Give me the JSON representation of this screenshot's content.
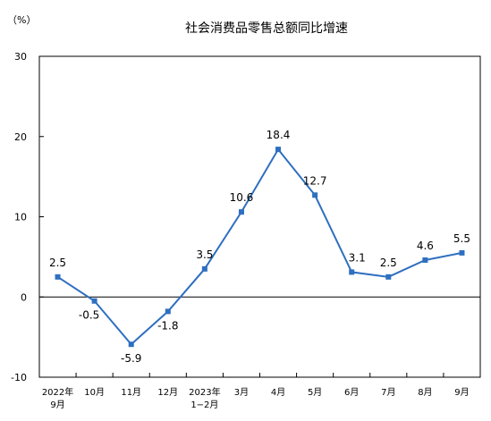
{
  "chart_data": {
    "type": "line",
    "title": "社会消费品零售总额同比增速",
    "unit_label": "（%）",
    "categories": [
      [
        "2022年",
        "9月"
      ],
      [
        "10月"
      ],
      [
        "11月"
      ],
      [
        "12月"
      ],
      [
        "2023年",
        "1−2月"
      ],
      [
        "3月"
      ],
      [
        "4月"
      ],
      [
        "5月"
      ],
      [
        "6月"
      ],
      [
        "7月"
      ],
      [
        "8月"
      ],
      [
        "9月"
      ]
    ],
    "series": [
      {
        "values": [
          2.5,
          -0.5,
          -5.9,
          -1.8,
          3.5,
          10.6,
          18.4,
          12.7,
          3.1,
          2.5,
          4.6,
          5.5
        ],
        "labels": [
          "2.5",
          "-0.5",
          "-5.9",
          "-1.8",
          "3.5",
          "10.6",
          "18.4",
          "12.7",
          "3.1",
          "2.5",
          "4.6",
          "5.5"
        ]
      }
    ],
    "ylim": [
      -10,
      30
    ],
    "yticks": [
      -10,
      0,
      10,
      20,
      30
    ],
    "grid": false,
    "legend": "none",
    "colors": {
      "line": "#2e6fc0",
      "marker": "#2e6fc0",
      "axis": "#000000",
      "text": "#000000"
    }
  }
}
